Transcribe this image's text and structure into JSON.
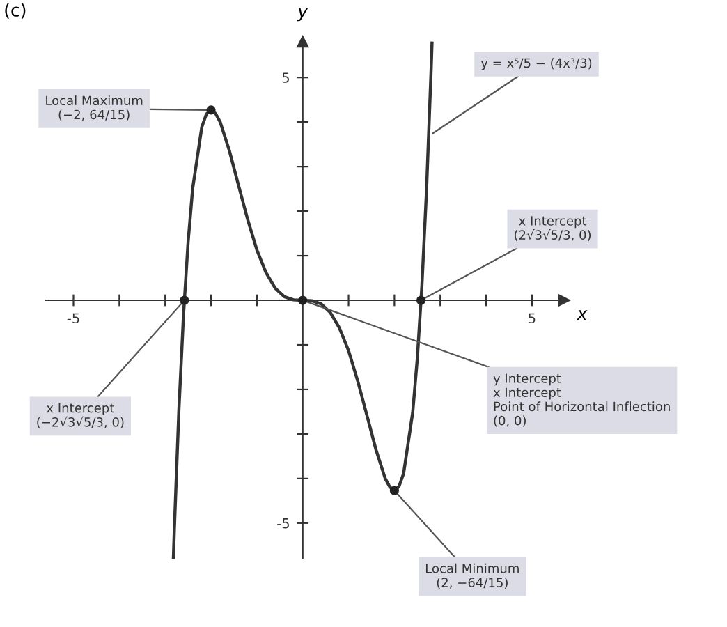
{
  "chart_data": {
    "type": "line",
    "title": "(c)",
    "xlabel": "x",
    "ylabel": "y",
    "xlim": [
      -5.6,
      5.7
    ],
    "ylim": [
      -5.8,
      5.8
    ],
    "xticks": [
      {
        "value": -5,
        "label": "-5"
      },
      {
        "value": -4,
        "label": null
      },
      {
        "value": -3,
        "label": null
      },
      {
        "value": -2,
        "label": null
      },
      {
        "value": -1,
        "label": null
      },
      {
        "value": 1,
        "label": null
      },
      {
        "value": 2,
        "label": null
      },
      {
        "value": 3,
        "label": null
      },
      {
        "value": 4,
        "label": null
      },
      {
        "value": 5,
        "label": "5"
      }
    ],
    "yticks": [
      {
        "value": -5,
        "label": "-5"
      },
      {
        "value": -4,
        "label": null
      },
      {
        "value": -3,
        "label": null
      },
      {
        "value": -2,
        "label": null
      },
      {
        "value": -1,
        "label": null
      },
      {
        "value": 1,
        "label": null
      },
      {
        "value": 2,
        "label": null
      },
      {
        "value": 3,
        "label": null
      },
      {
        "value": 4,
        "label": null
      },
      {
        "value": 5,
        "label": "5"
      }
    ],
    "grid": false,
    "legend": false,
    "series": [
      {
        "color": "#333333",
        "marker": "none",
        "line_style": "solid",
        "x": [
          -2.82,
          -2.8,
          -2.7,
          -2.6,
          -2.5,
          -2.4,
          -2.2,
          -2.1,
          -2.0,
          -1.9,
          -1.8,
          -1.6,
          -1.4,
          -1.2,
          -1.0,
          -0.8,
          -0.6,
          -0.4,
          -0.2,
          0,
          0.2,
          0.4,
          0.6,
          0.8,
          1.0,
          1.2,
          1.4,
          1.6,
          1.8,
          1.9,
          2.0,
          2.1,
          2.2,
          2.4,
          2.5,
          2.6,
          2.7,
          2.8,
          2.82
        ],
        "values": [
          -5.77,
          -5.15,
          -2.45,
          -0.33,
          1.3,
          2.51,
          3.89,
          4.18,
          4.27,
          4.19,
          4.0,
          3.36,
          2.58,
          1.81,
          1.13,
          0.62,
          0.27,
          0.08,
          0.01,
          0,
          -0.01,
          -0.08,
          -0.27,
          -0.62,
          -1.13,
          -1.81,
          -2.58,
          -3.36,
          -4.0,
          -4.19,
          -4.27,
          -4.18,
          -3.89,
          -2.51,
          -1.3,
          0.33,
          2.45,
          5.15,
          5.77
        ]
      },
      {
        "type": "scatter",
        "color": "#222222",
        "marker": "circle",
        "x": [
          -2.58,
          -2,
          0,
          2,
          2.58
        ],
        "values": [
          0,
          4.27,
          0,
          -4.27,
          0
        ]
      }
    ],
    "annotations": [
      {
        "text": "Local Maximum\n(−2, 64/15)",
        "x": -2,
        "y": 4.27
      },
      {
        "text": "y = x⁵/5 − (4x³/3)",
        "x": 2.77,
        "y": 3.7
      },
      {
        "text": "x Intercept\n(2√3√5/3, 0)",
        "x": 2.58,
        "y": 0
      },
      {
        "text": "x Intercept\n(−2√3√5/3, 0)",
        "x": -2.58,
        "y": 0
      },
      {
        "text": "y Intercept\nx Intercept\nPoint of Horizontal Inflection\n(0, 0)",
        "x": 0,
        "y": 0
      },
      {
        "text": "Local Minimum\n(2, −64/15)",
        "x": 2,
        "y": -4.27
      }
    ]
  }
}
